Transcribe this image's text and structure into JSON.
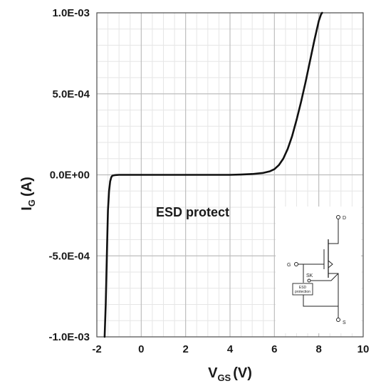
{
  "chart_data": {
    "type": "line",
    "xlabel_main": "V",
    "xlabel_sub": "GS",
    "xlabel_unit": "(V)",
    "ylabel_main": "I",
    "ylabel_sub": "G",
    "ylabel_unit": "(A)",
    "xlim": [
      -2,
      10
    ],
    "ylim": [
      -0.001,
      0.001
    ],
    "x_ticks": [
      -2,
      0,
      2,
      4,
      6,
      8,
      10
    ],
    "x_tick_labels": [
      "-2",
      "0",
      "2",
      "4",
      "6",
      "8",
      "10"
    ],
    "y_ticks": [
      0.001,
      0.0005,
      0,
      -0.0005,
      -0.001
    ],
    "y_tick_labels": [
      "1.0E-03",
      "5.0E-04",
      "0.0E+00",
      "-5.0E-04",
      "-1.0E-03"
    ],
    "grid": true,
    "series": [
      {
        "x": [
          -1.65,
          -1.6,
          -1.55,
          -1.5,
          -1.45,
          -1.4,
          -1.35,
          -1.3,
          -1.2,
          -1.1,
          -1.0,
          -0.5,
          0,
          1,
          2,
          3,
          4,
          4.5,
          5,
          5.5,
          5.8,
          6.0,
          6.2,
          6.4,
          6.6,
          6.8,
          7.0,
          7.2,
          7.4,
          7.6,
          7.8,
          8.0,
          8.1,
          8.15
        ],
        "y": [
          -0.001,
          -0.0008,
          -0.0005,
          -0.00022,
          -0.0001,
          -4e-05,
          -1.5e-05,
          -5e-06,
          -2e-06,
          -1e-06,
          0,
          0,
          0,
          0,
          0,
          0,
          0,
          2e-06,
          5e-06,
          1.2e-05,
          2.2e-05,
          3.5e-05,
          6e-05,
          0.0001,
          0.00016,
          0.00024,
          0.00034,
          0.00045,
          0.00057,
          0.0007,
          0.00083,
          0.00095,
          0.00099,
          0.001
        ]
      }
    ],
    "annotation": "ESD protect"
  },
  "schematic": {
    "label_d": "D",
    "label_g": "G",
    "label_s": "S",
    "label_sk": "SK",
    "label_esd_1": "ESD",
    "label_esd_2": "protection"
  }
}
